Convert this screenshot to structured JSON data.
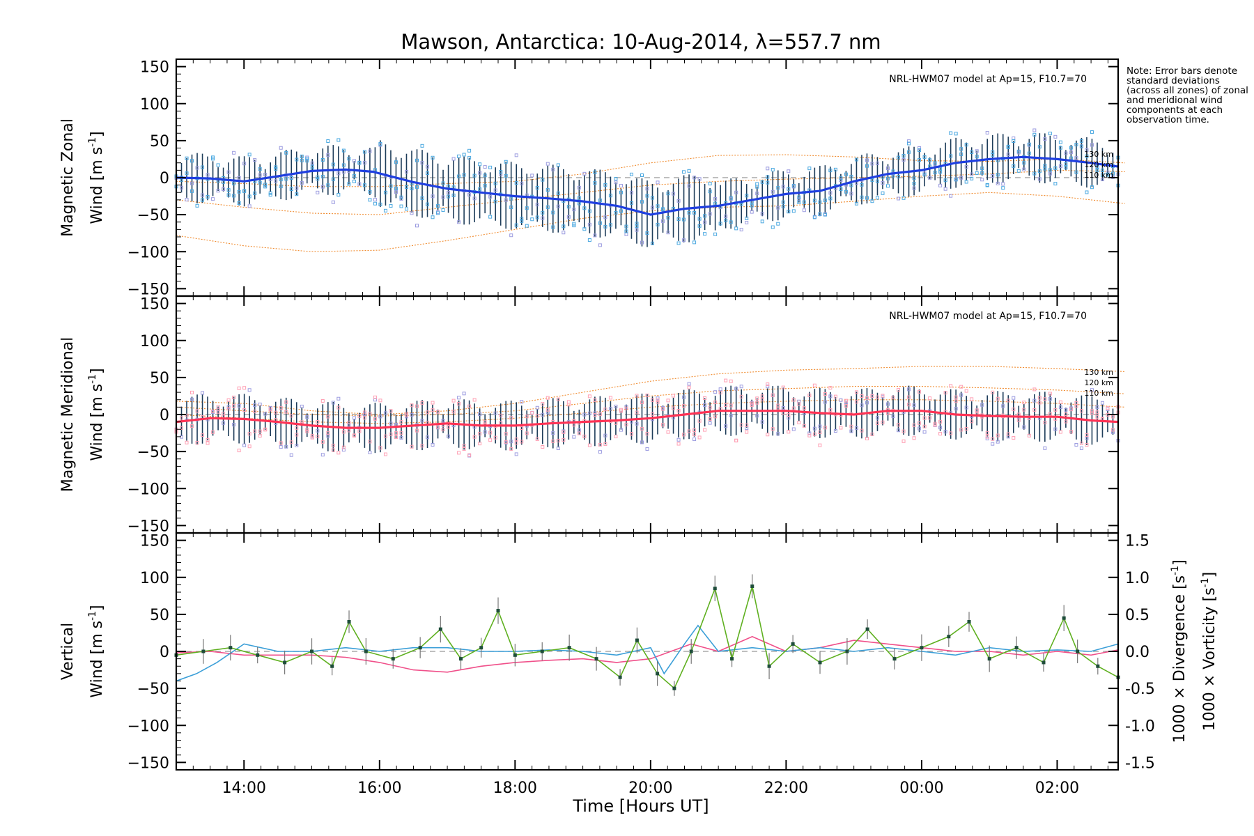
{
  "chart_data": {
    "type": "line",
    "title": "Mawson, Antarctica: 10-Aug-2014, λ=557.7 nm",
    "note": "Note: Error bars denote standard deviations (across all zones) of zonal and meridional wind components at each observation time.",
    "xlabel": "Time [Hours UT]",
    "x_unit": "hours UT (13.0 = 13:00 on 10-Aug-2014, 24 = 00:00 on 11-Aug-2014)",
    "xlim": [
      13.0,
      26.9
    ],
    "x_ticks": [
      {
        "x": 14,
        "label": "14:00"
      },
      {
        "x": 16,
        "label": "16:00"
      },
      {
        "x": 18,
        "label": "18:00"
      },
      {
        "x": 20,
        "label": "20:00"
      },
      {
        "x": 22,
        "label": "22:00"
      },
      {
        "x": 24,
        "label": "00:00"
      },
      {
        "x": 26,
        "label": "02:00"
      }
    ],
    "colors": {
      "zonal_mean": "#1f3fe0",
      "zonal_light": "#4aa8e0",
      "meridional_mean": "#ff3355",
      "meridional_light": "#ffa0b4",
      "vertical": "#5fb020",
      "divergence": "#3b9fd8",
      "vorticity": "#f0508a",
      "model": "#f08c30",
      "zone_markers": "#9c9ce0",
      "error_bars": "#1e3d5a"
    },
    "panels": [
      {
        "id": "zonal",
        "ylabel_line1": "Magnetic Zonal",
        "ylabel_line2_prefix": "Wind [m s",
        "ylabel_sup": "-1",
        "ylabel_suffix": "]",
        "ylim": [
          -160,
          160
        ],
        "y_ticks": [
          150,
          100,
          50,
          0,
          -50,
          -100,
          -150
        ],
        "model_label": "NRL-HWM07 model at Ap=15, F10.7=70",
        "model_height_labels": [
          "130 km",
          "120 km",
          "110 km"
        ],
        "series": [
          {
            "name": "Zonal wind",
            "x": [
              13.0,
              13.5,
              14.0,
              14.5,
              15.0,
              15.5,
              15.9,
              16.5,
              17.0,
              17.5,
              18.0,
              18.5,
              19.0,
              19.5,
              20.0,
              20.5,
              21.0,
              21.5,
              22.0,
              22.5,
              23.0,
              23.5,
              24.0,
              24.5,
              25.0,
              25.5,
              26.0,
              26.5,
              26.9
            ],
            "y": [
              0,
              -1,
              -5,
              2,
              9,
              11,
              8,
              -6,
              -15,
              -20,
              -25,
              -28,
              -32,
              -38,
              -50,
              -42,
              -38,
              -30,
              -22,
              -18,
              -5,
              5,
              10,
              20,
              25,
              28,
              25,
              20,
              15
            ]
          }
        ],
        "model_curves": [
          {
            "name": "130 km",
            "x": [
              13,
              14,
              15,
              16,
              17,
              18,
              19,
              20,
              21,
              22,
              23,
              24,
              25,
              26,
              27
            ],
            "y": [
              -5,
              -8,
              -12,
              -12,
              -8,
              -5,
              5,
              20,
              30,
              31,
              28,
              23,
              22,
              25,
              20
            ]
          },
          {
            "name": "120 km",
            "x": [
              13,
              14,
              15,
              16,
              17,
              18,
              19,
              20,
              21,
              22,
              23,
              24,
              25,
              26,
              27
            ],
            "y": [
              -30,
              -40,
              -48,
              -50,
              -40,
              -30,
              -20,
              -10,
              -5,
              -2,
              0,
              2,
              5,
              10,
              8
            ]
          },
          {
            "name": "110 km",
            "x": [
              13,
              14,
              15,
              16,
              17,
              18,
              19,
              20,
              21,
              22,
              23,
              24,
              25,
              26,
              27
            ],
            "y": [
              -78,
              -92,
              -100,
              -98,
              -85,
              -70,
              -55,
              -45,
              -40,
              -38,
              -32,
              -25,
              -20,
              -25,
              -35
            ]
          }
        ]
      },
      {
        "id": "meridional",
        "ylabel_line1": "Magnetic Meridional",
        "ylabel_line2_prefix": "Wind [m s",
        "ylabel_sup": "-1",
        "ylabel_suffix": "]",
        "ylim": [
          -160,
          160
        ],
        "y_ticks": [
          150,
          100,
          50,
          0,
          -50,
          -100,
          -150
        ],
        "model_label": "NRL-HWM07 model at Ap=15, F10.7=70",
        "model_height_labels": [
          "130 km",
          "120 km",
          "110 km"
        ],
        "series": [
          {
            "name": "Meridional wind",
            "x": [
              13.0,
              13.5,
              14.0,
              14.5,
              15.0,
              15.5,
              16.0,
              16.5,
              17.0,
              17.5,
              18.0,
              18.5,
              19.0,
              19.5,
              20.0,
              20.5,
              21.0,
              21.5,
              22.0,
              22.5,
              23.0,
              23.5,
              24.0,
              24.5,
              25.0,
              25.5,
              26.0,
              26.5,
              26.9
            ],
            "y": [
              -10,
              -5,
              -6,
              -10,
              -15,
              -18,
              -18,
              -15,
              -12,
              -15,
              -15,
              -12,
              -10,
              -8,
              -5,
              0,
              5,
              5,
              5,
              2,
              0,
              5,
              5,
              0,
              -2,
              -3,
              -3,
              -8,
              -10
            ]
          }
        ],
        "model_curves": [
          {
            "name": "130 km",
            "x": [
              13,
              14,
              15,
              16,
              17,
              18,
              19,
              20,
              21,
              22,
              23,
              24,
              25,
              26,
              27
            ],
            "y": [
              18,
              15,
              5,
              0,
              5,
              15,
              30,
              45,
              55,
              60,
              62,
              65,
              65,
              62,
              58
            ]
          },
          {
            "name": "120 km",
            "x": [
              13,
              14,
              15,
              16,
              17,
              18,
              19,
              20,
              21,
              22,
              23,
              24,
              25,
              26,
              27
            ],
            "y": [
              10,
              5,
              0,
              -2,
              0,
              5,
              15,
              25,
              32,
              35,
              38,
              38,
              36,
              33,
              28
            ]
          },
          {
            "name": "110 km",
            "x": [
              13,
              14,
              15,
              16,
              17,
              18,
              19,
              20,
              21,
              22,
              23,
              24,
              25,
              26,
              27
            ],
            "y": [
              0,
              -5,
              -10,
              -12,
              -10,
              -5,
              2,
              10,
              15,
              18,
              20,
              20,
              18,
              15,
              10
            ]
          }
        ]
      },
      {
        "id": "vertical",
        "ylabel_line1": "Vertical",
        "ylabel_line2_prefix": "Wind [m s",
        "ylabel_sup": "-1",
        "ylabel_suffix": "]",
        "ylim": [
          -160,
          160
        ],
        "y_ticks": [
          150,
          100,
          50,
          0,
          -50,
          -100,
          -150
        ],
        "right_ylim": [
          -1.6,
          1.6
        ],
        "right_ticks": [
          "1.5",
          "1.0",
          "0.5",
          "0.0",
          "-0.5",
          "-1.0",
          "-1.5"
        ],
        "right_label_div": "1000 × Divergence [s",
        "right_label_vort": "1000 × Vorticity [s",
        "series": [
          {
            "name": "Vertical wind",
            "x": [
              13.0,
              13.4,
              13.8,
              14.2,
              14.6,
              15.0,
              15.3,
              15.55,
              15.8,
              16.2,
              16.6,
              16.9,
              17.2,
              17.5,
              17.75,
              18.0,
              18.4,
              18.8,
              19.2,
              19.55,
              19.8,
              20.1,
              20.35,
              20.6,
              20.95,
              21.2,
              21.5,
              21.75,
              22.1,
              22.5,
              22.9,
              23.2,
              23.6,
              24.0,
              24.4,
              24.7,
              25.0,
              25.4,
              25.8,
              26.1,
              26.3,
              26.6,
              26.9
            ],
            "y": [
              -5,
              0,
              5,
              -5,
              -15,
              0,
              -20,
              40,
              0,
              -10,
              5,
              30,
              -10,
              5,
              55,
              -5,
              0,
              5,
              -10,
              -35,
              15,
              -30,
              -50,
              0,
              85,
              -10,
              88,
              -20,
              10,
              -15,
              0,
              30,
              -10,
              5,
              20,
              40,
              -10,
              5,
              -15,
              45,
              0,
              -20,
              -35
            ]
          },
          {
            "name": "1000 × Divergence",
            "axis": "right",
            "x": [
              13.0,
              13.3,
              13.6,
              14.0,
              14.5,
              15.0,
              15.5,
              16.0,
              16.5,
              17.0,
              17.5,
              18.0,
              18.5,
              19.0,
              19.5,
              20.0,
              20.2,
              20.5,
              20.7,
              21.0,
              21.5,
              22.0,
              22.5,
              23.0,
              23.5,
              24.0,
              24.5,
              25.0,
              25.5,
              26.0,
              26.5,
              26.9
            ],
            "y": [
              -0.4,
              -0.3,
              -0.15,
              0.1,
              0.0,
              0.0,
              0.05,
              0.0,
              0.05,
              0.05,
              0.0,
              0.0,
              0.02,
              0.0,
              -0.05,
              0.05,
              -0.3,
              0.1,
              0.35,
              0.0,
              0.05,
              0.0,
              0.05,
              0.0,
              0.05,
              0.0,
              -0.05,
              0.05,
              0.0,
              0.02,
              0.0,
              0.1
            ]
          },
          {
            "name": "1000 × Vorticity",
            "axis": "right",
            "x": [
              13.0,
              13.5,
              14.0,
              14.5,
              15.0,
              15.5,
              16.0,
              16.5,
              17.0,
              17.5,
              18.0,
              18.5,
              19.0,
              19.5,
              20.0,
              20.3,
              20.6,
              21.0,
              21.5,
              22.0,
              22.5,
              23.0,
              23.5,
              24.0,
              24.5,
              25.0,
              25.5,
              26.0,
              26.5,
              26.9
            ],
            "y": [
              -0.02,
              0.0,
              -0.05,
              -0.05,
              -0.05,
              -0.08,
              -0.15,
              -0.25,
              -0.28,
              -0.2,
              -0.15,
              -0.12,
              -0.1,
              -0.15,
              -0.1,
              0.0,
              0.1,
              0.0,
              0.2,
              0.0,
              0.05,
              0.15,
              0.1,
              0.05,
              0.0,
              0.0,
              -0.05,
              0.0,
              -0.05,
              0.02
            ]
          }
        ]
      }
    ]
  }
}
